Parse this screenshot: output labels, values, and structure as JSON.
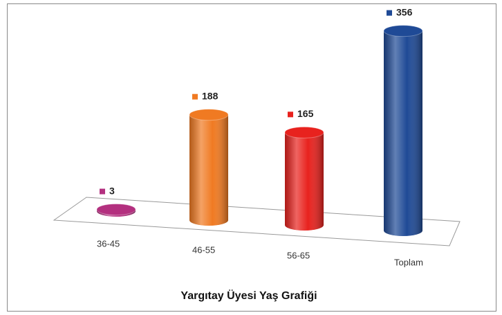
{
  "chart_data": {
    "type": "cylinder-bar",
    "title": "Yargıtay Üyesi Yaş Grafiği",
    "categories": [
      "36-45",
      "46-55",
      "56-65",
      "Toplam"
    ],
    "values": [
      3,
      188,
      165,
      356
    ],
    "colors": [
      "#b3307f",
      "#f07a22",
      "#e8221e",
      "#1f4a96"
    ]
  }
}
